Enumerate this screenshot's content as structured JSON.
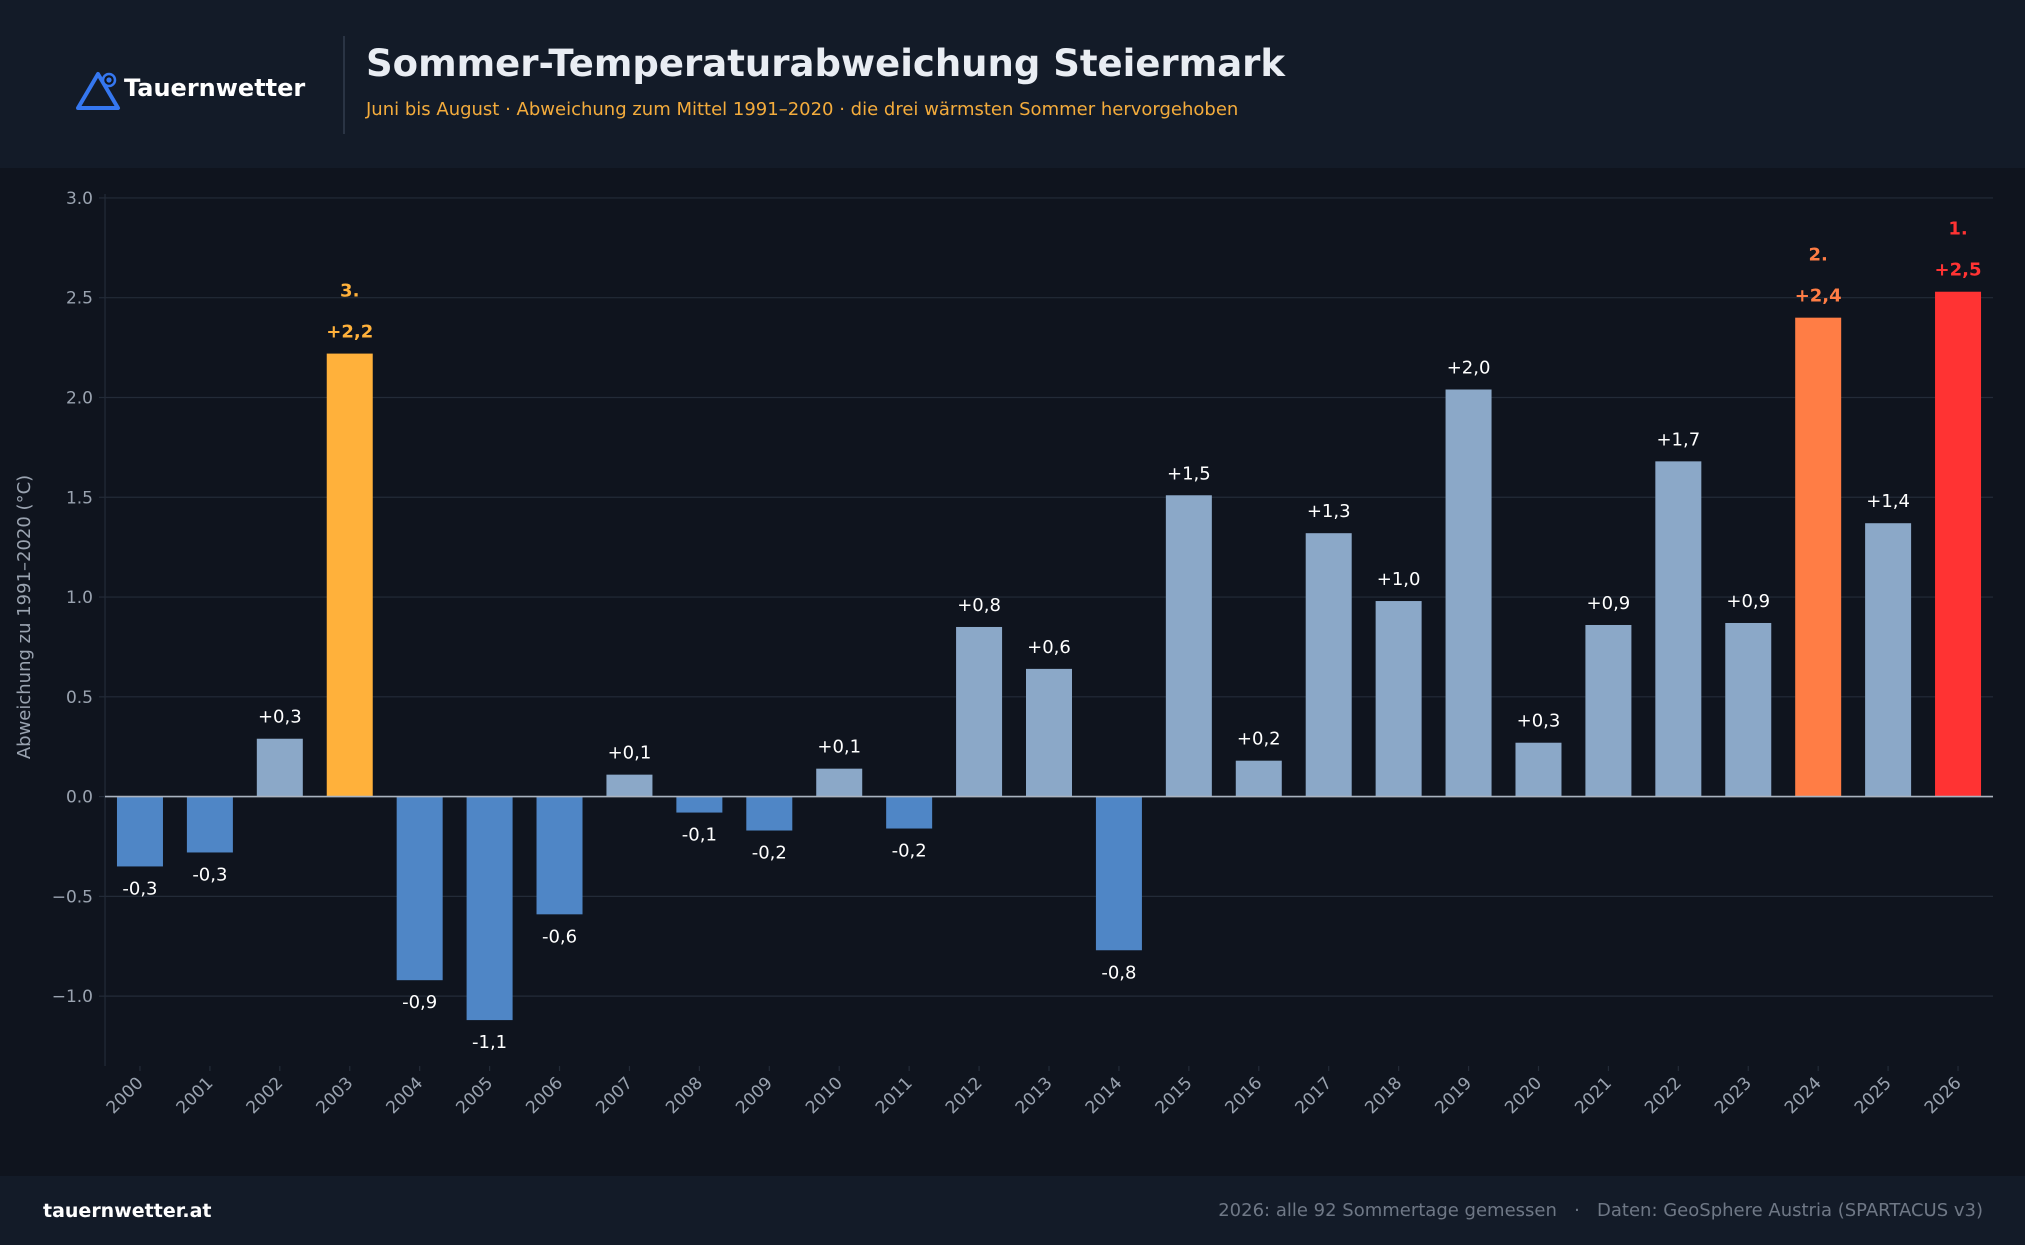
{
  "header": {
    "brand": "Tauernwetter",
    "logo_icon": "mountain-triangle-icon",
    "title": "Sommer-Temperaturabweichung Steiermark",
    "subtitle": "Juni bis August · Abweichung zum Mittel 1991–2020 · die drei wärmsten Sommer hervorgehoben"
  },
  "footer": {
    "site": "tauernwetter.at",
    "note": "2026: alle 92 Sommertage gemessen",
    "separator": "·",
    "source": "Daten: GeoSphere Austria (SPARTACUS v3)"
  },
  "colors": {
    "cold": "#4f86c6",
    "warm": "#8ba8c8",
    "rank1": "#ff3333",
    "rank2": "#ff7d45",
    "rank3": "#ffb13b",
    "grid": "#232b38",
    "zero_line": "#aab3c0",
    "axis_text": "#9aa3b0",
    "label_text": "#ffffff"
  },
  "chart_data": {
    "type": "bar",
    "title": "Sommer-Temperaturabweichung Steiermark",
    "ylabel": "Abweichung zu 1991–2020 (°C)",
    "xlabel": "",
    "ylim": [
      -1.35,
      3.15
    ],
    "yticks": [
      3.0,
      2.5,
      2.0,
      1.5,
      1.0,
      0.5,
      0.0,
      -0.5,
      -1.0
    ],
    "ytick_labels": [
      "3.0",
      "2.5",
      "2.0",
      "1.5",
      "1.0",
      "0.5",
      "0.0",
      "−0.5",
      "−1.0"
    ],
    "grid": true,
    "categories": [
      "2000",
      "2001",
      "2002",
      "2003",
      "2004",
      "2005",
      "2006",
      "2007",
      "2008",
      "2009",
      "2010",
      "2011",
      "2012",
      "2013",
      "2014",
      "2015",
      "2016",
      "2017",
      "2018",
      "2019",
      "2020",
      "2021",
      "2022",
      "2023",
      "2024",
      "2025",
      "2026"
    ],
    "values": [
      -0.35,
      -0.28,
      0.29,
      2.22,
      -0.92,
      -1.12,
      -0.59,
      0.11,
      -0.08,
      -0.17,
      0.14,
      -0.16,
      0.85,
      0.64,
      -0.77,
      1.51,
      0.18,
      1.32,
      0.98,
      2.04,
      0.27,
      0.86,
      1.68,
      0.87,
      2.4,
      1.37,
      2.53
    ],
    "value_labels": [
      "-0,3",
      "-0,3",
      "+0,3",
      "+2,2",
      "-0,9",
      "-1,1",
      "-0,6",
      "+0,1",
      "-0,1",
      "-0,2",
      "+0,1",
      "-0,2",
      "+0,8",
      "+0,6",
      "-0,8",
      "+1,5",
      "+0,2",
      "+1,3",
      "+1,0",
      "+2,0",
      "+0,3",
      "+0,9",
      "+1,7",
      "+0,9",
      "+2,4",
      "+1,4",
      "+2,5"
    ],
    "highlights": [
      {
        "year": "2026",
        "rank": "1.",
        "color_key": "rank1"
      },
      {
        "year": "2024",
        "rank": "2.",
        "color_key": "rank2"
      },
      {
        "year": "2003",
        "rank": "3.",
        "color_key": "rank3"
      }
    ]
  }
}
